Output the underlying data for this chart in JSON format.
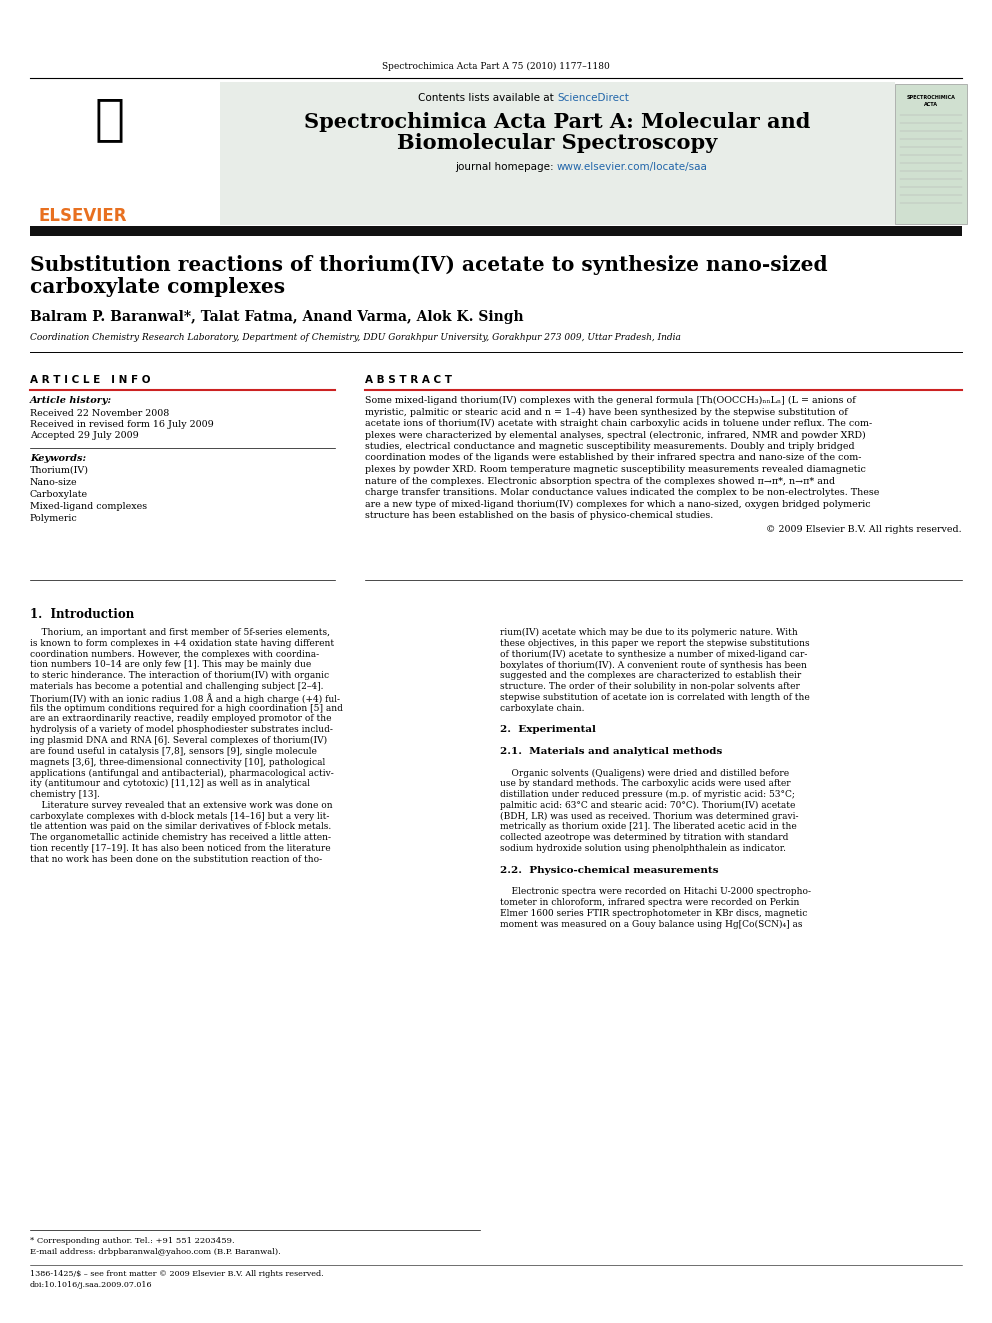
{
  "page_width": 9.92,
  "page_height": 13.23,
  "bg_color": "#ffffff",
  "top_journal_ref": "Spectrochimica Acta Part A 75 (2010) 1177–1180",
  "header_bg": "#e8ede8",
  "sciencedirect_color": "#2266aa",
  "journal_title_line1": "Spectrochimica Acta Part A: Molecular and",
  "journal_title_line2": "Biomolecular Spectroscopy",
  "journal_homepage_url": "www.elsevier.com/locate/saa",
  "elsevier_color": "#e87020",
  "dark_bar_color": "#111111",
  "article_title_line1": "Substitution reactions of thorium(IV) acetate to synthesize nano-sized",
  "article_title_line2": "carboxylate complexes",
  "authors": "Balram P. Baranwal*, Talat Fatma, Anand Varma, Alok K. Singh",
  "affiliation": "Coordination Chemistry Research Laboratory, Department of Chemistry, DDU Gorakhpur University, Gorakhpur 273 009, Uttar Pradesh, India",
  "article_info_header": "A R T I C L E   I N F O",
  "abstract_header": "A B S T R A C T",
  "article_history_label": "Article history:",
  "received_line1": "Received 22 November 2008",
  "received_line2": "Received in revised form 16 July 2009",
  "accepted_line": "Accepted 29 July 2009",
  "keywords_label": "Keywords:",
  "keywords": [
    "Thorium(IV)",
    "Nano-size",
    "Carboxylate",
    "Mixed-ligand complexes",
    "Polymeric"
  ],
  "copyright_line": "© 2009 Elsevier B.V. All rights reserved.",
  "footer_note": "* Corresponding author. Tel.: +91 551 2203459.",
  "footer_email": "E-mail address: drbpbaranwal@yahoo.com (B.P. Baranwal).",
  "footer_left": "1386-1425/$ – see front matter © 2009 Elsevier B.V. All rights reserved.",
  "footer_doi": "doi:10.1016/j.saa.2009.07.016",
  "red_line_color": "#cc2222"
}
